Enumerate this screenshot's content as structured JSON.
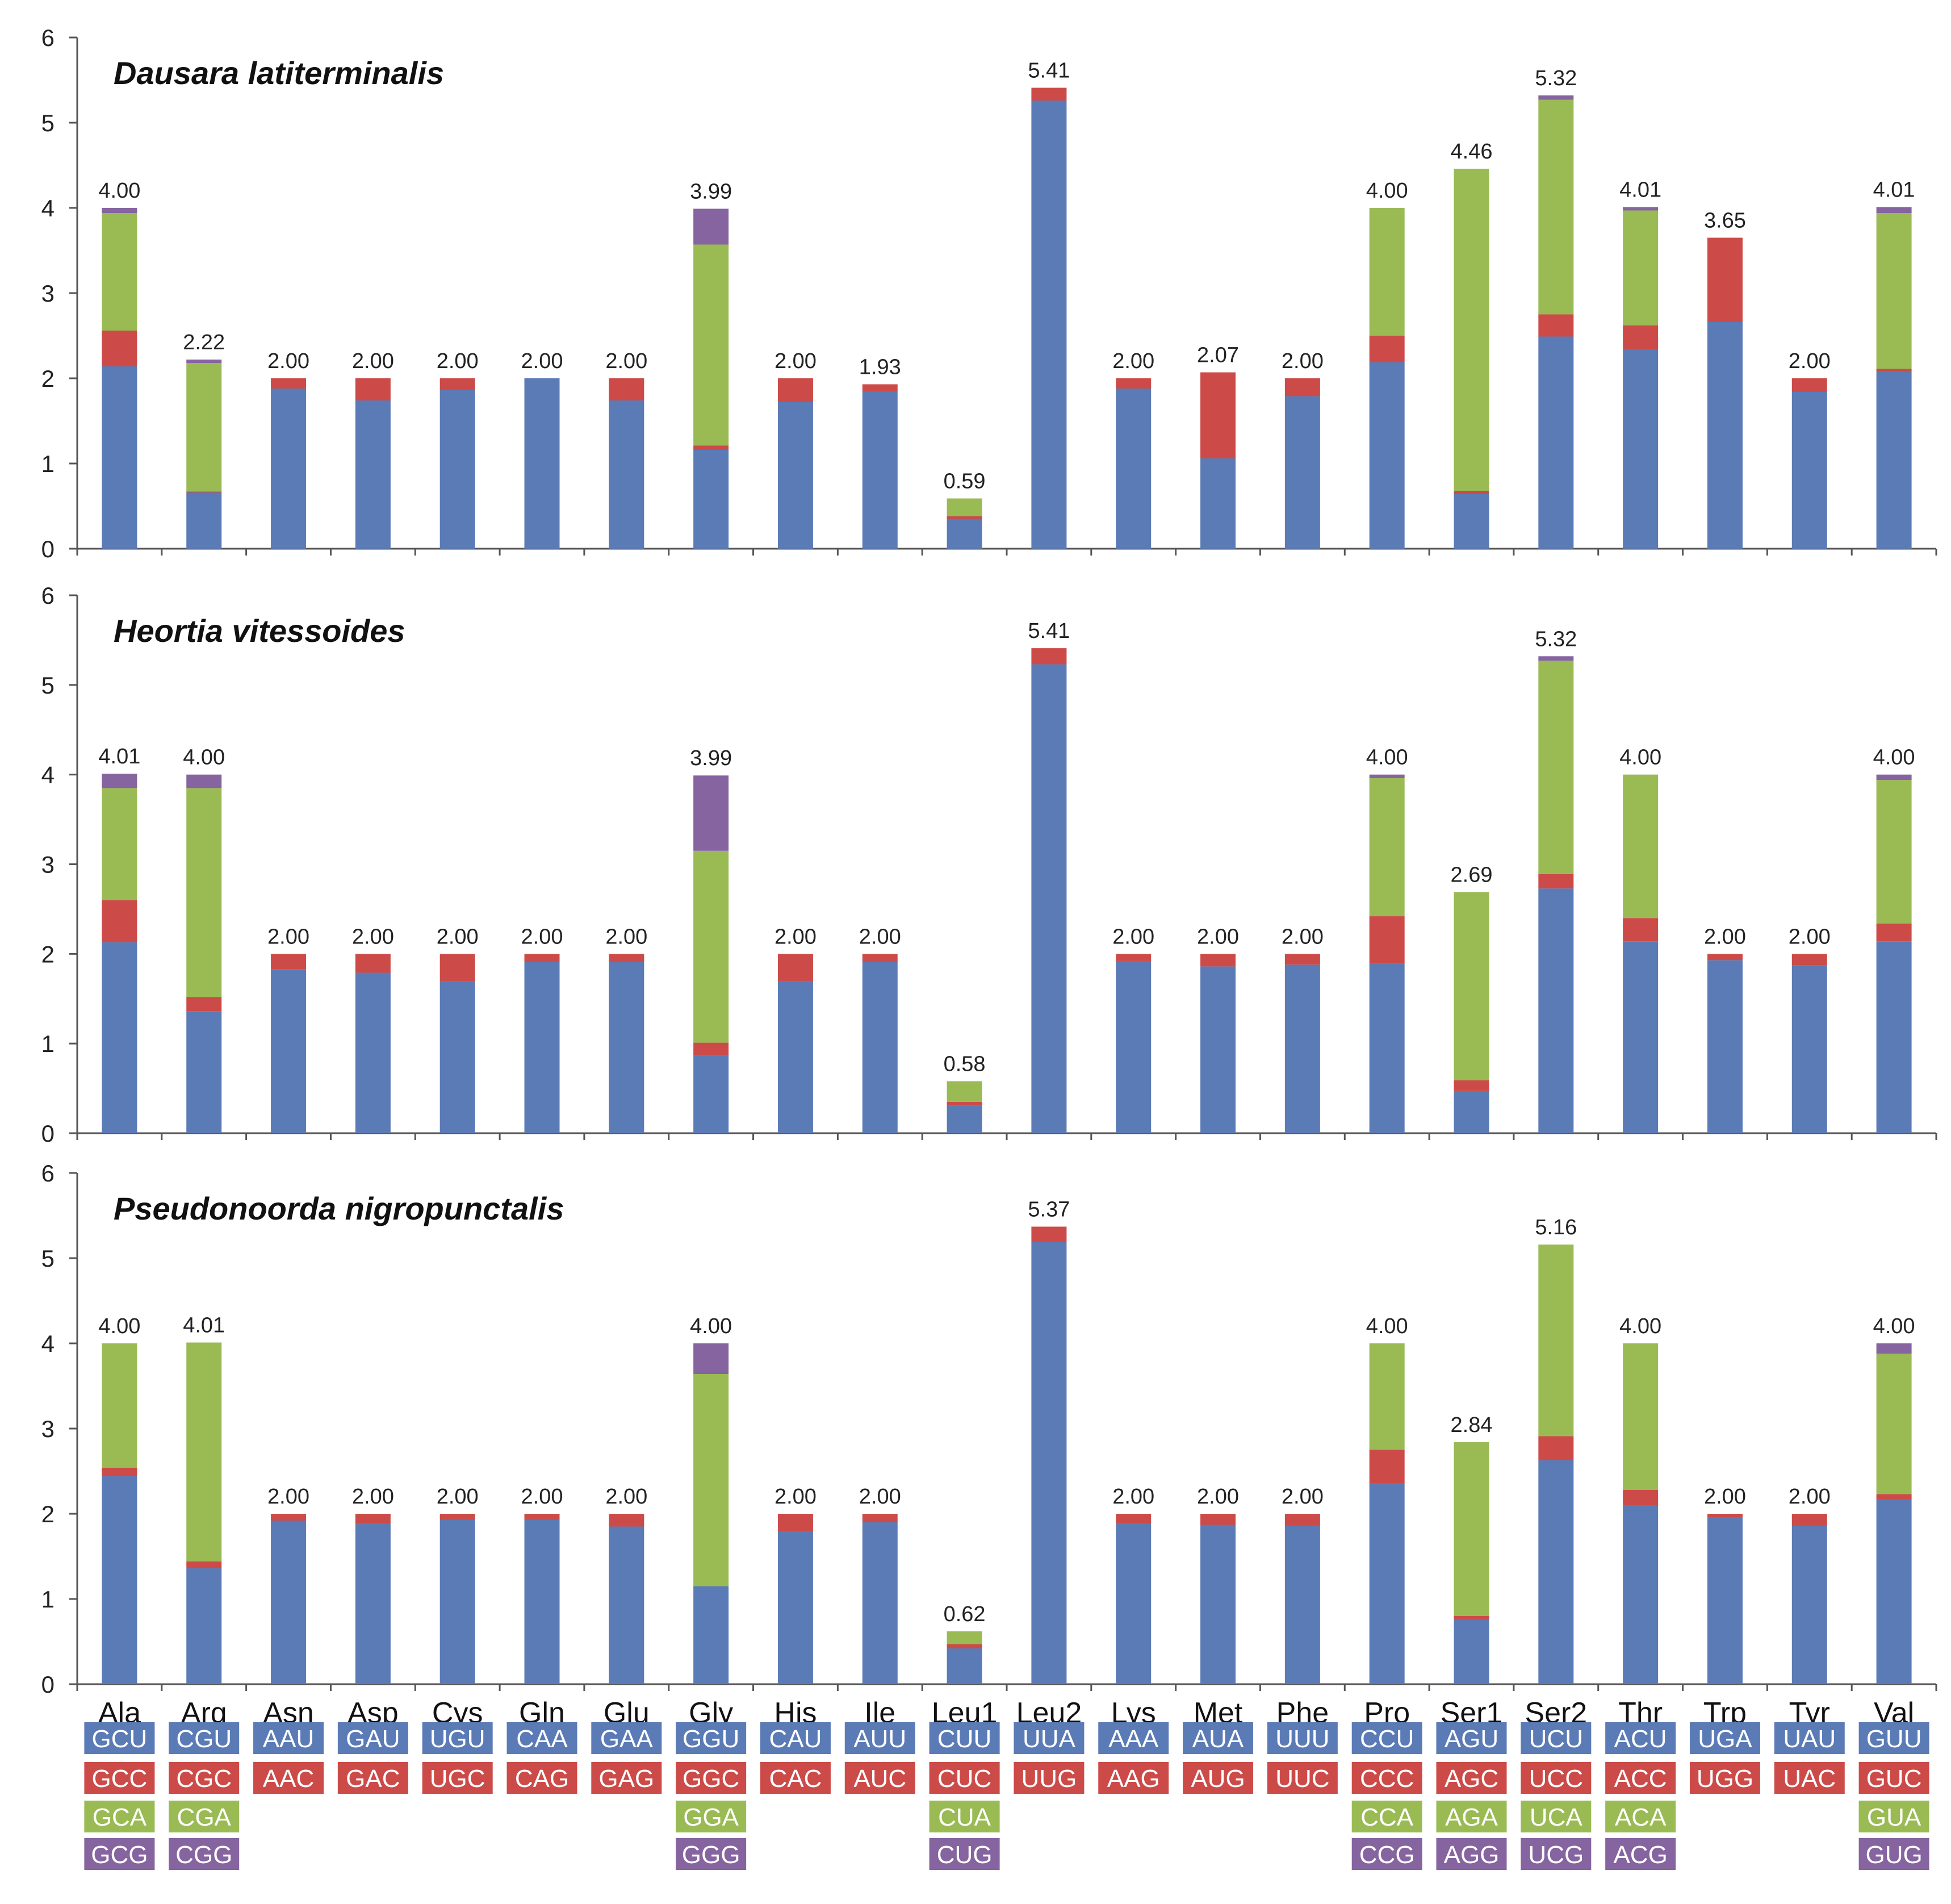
{
  "chart_data": {
    "type": "bar",
    "stacked": true,
    "categories": [
      "Ala",
      "Arg",
      "Asn",
      "Asp",
      "Cys",
      "Gln",
      "Glu",
      "Gly",
      "His",
      "Ile",
      "Leu1",
      "Leu2",
      "Lys",
      "Met",
      "Phe",
      "Pro",
      "Ser1",
      "Ser2",
      "Thr",
      "Trp",
      "Tyr",
      "Val"
    ],
    "ylim": [
      0,
      6
    ],
    "yticks": [
      "0",
      "1",
      "2",
      "3",
      "4",
      "5",
      "6"
    ],
    "colors": [
      "#5b7bb6",
      "#cc4b48",
      "#9aba54",
      "#8564a0"
    ],
    "panels": [
      {
        "title": "Dausara latiterminalis",
        "totals_labels": [
          "4.00",
          "2.22",
          "2.00",
          "2.00",
          "2.00",
          "2.00",
          "2.00",
          "3.99",
          "2.00",
          "1.93",
          "0.59",
          "5.41",
          "2.00",
          "2.07",
          "2.00",
          "4.00",
          "4.46",
          "5.32",
          "4.01",
          "3.65",
          "2.00",
          "4.01"
        ],
        "series": [
          {
            "name": "codon 1",
            "values": [
              2.14,
              0.66,
              1.88,
              1.74,
              1.86,
              2.0,
              1.74,
              1.16,
              1.72,
              1.85,
              0.35,
              5.26,
              1.88,
              1.06,
              1.79,
              2.19,
              0.64,
              2.49,
              2.34,
              2.66,
              1.84,
              2.08
            ]
          },
          {
            "name": "codon 2",
            "values": [
              0.42,
              0.01,
              0.12,
              0.26,
              0.14,
              0.0,
              0.26,
              0.05,
              0.28,
              0.08,
              0.03,
              0.15,
              0.12,
              1.01,
              0.21,
              0.31,
              0.04,
              0.26,
              0.28,
              0.99,
              0.16,
              0.03
            ]
          },
          {
            "name": "codon 3",
            "values": [
              1.38,
              1.51,
              0,
              0,
              0,
              0,
              0,
              2.36,
              0,
              0,
              0.21,
              0,
              0,
              0,
              0,
              1.5,
              3.78,
              2.52,
              1.35,
              0,
              0,
              1.83
            ]
          },
          {
            "name": "codon 4",
            "values": [
              0.06,
              0.04,
              0,
              0,
              0,
              0,
              0,
              0.42,
              0,
              0,
              0,
              0,
              0,
              0,
              0,
              0,
              0,
              0.05,
              0.04,
              0,
              0,
              0.07
            ]
          }
        ]
      },
      {
        "title": "Heortia vitessoides",
        "totals_labels": [
          "4.01",
          "4.00",
          "2.00",
          "2.00",
          "2.00",
          "2.00",
          "2.00",
          "3.99",
          "2.00",
          "2.00",
          "0.58",
          "5.41",
          "2.00",
          "2.00",
          "2.00",
          "4.00",
          "2.69",
          "5.32",
          "4.00",
          "2.00",
          "2.00",
          "4.00"
        ],
        "series": [
          {
            "name": "codon 1",
            "values": [
              2.13,
              1.36,
              1.83,
              1.79,
              1.69,
              1.91,
              1.91,
              0.87,
              1.69,
              1.91,
              0.31,
              5.23,
              1.92,
              1.86,
              1.88,
              1.9,
              0.47,
              2.73,
              2.14,
              1.93,
              1.87,
              2.14
            ]
          },
          {
            "name": "codon 2",
            "values": [
              0.47,
              0.16,
              0.17,
              0.21,
              0.31,
              0.09,
              0.09,
              0.14,
              0.31,
              0.09,
              0.04,
              0.18,
              0.08,
              0.14,
              0.12,
              0.52,
              0.12,
              0.16,
              0.26,
              0.07,
              0.13,
              0.2
            ]
          },
          {
            "name": "codon 3",
            "values": [
              1.25,
              2.33,
              0,
              0,
              0,
              0,
              0,
              2.14,
              0,
              0,
              0.23,
              0,
              0,
              0,
              0,
              1.54,
              2.1,
              2.38,
              1.6,
              0,
              0,
              1.6
            ]
          },
          {
            "name": "codon 4",
            "values": [
              0.16,
              0.15,
              0,
              0,
              0,
              0,
              0,
              0.84,
              0,
              0,
              0,
              0,
              0,
              0,
              0,
              0.04,
              0,
              0.05,
              0,
              0,
              0,
              0.06
            ]
          }
        ]
      },
      {
        "title": "Pseudonoorda nigropunctalis",
        "totals_labels": [
          "4.00",
          "4.01",
          "2.00",
          "2.00",
          "2.00",
          "2.00",
          "2.00",
          "4.00",
          "2.00",
          "2.00",
          "0.62",
          "5.37",
          "2.00",
          "2.00",
          "2.00",
          "4.00",
          "2.84",
          "5.16",
          "4.00",
          "2.00",
          "2.00",
          "4.00"
        ],
        "series": [
          {
            "name": "codon 1",
            "values": [
              2.44,
              1.36,
              1.92,
              1.89,
              1.93,
              1.93,
              1.85,
              1.15,
              1.8,
              1.9,
              0.42,
              5.19,
              1.89,
              1.87,
              1.86,
              2.36,
              0.76,
              2.63,
              2.1,
              1.96,
              1.86,
              2.17
            ]
          },
          {
            "name": "codon 2",
            "values": [
              0.1,
              0.08,
              0.08,
              0.11,
              0.07,
              0.07,
              0.15,
              0,
              0.2,
              0.1,
              0.05,
              0.18,
              0.11,
              0.13,
              0.14,
              0.39,
              0.04,
              0.28,
              0.18,
              0.04,
              0.14,
              0.06
            ]
          },
          {
            "name": "codon 3",
            "values": [
              1.46,
              2.57,
              0,
              0,
              0,
              0,
              0,
              2.49,
              0,
              0,
              0.15,
              0,
              0,
              0,
              0,
              1.25,
              2.04,
              2.25,
              1.72,
              0,
              0,
              1.65
            ]
          },
          {
            "name": "codon 4",
            "values": [
              0,
              0,
              0,
              0,
              0,
              0,
              0,
              0.36,
              0,
              0,
              0,
              0,
              0,
              0,
              0,
              0,
              0,
              0,
              0,
              0,
              0,
              0.12
            ]
          }
        ]
      }
    ],
    "codons": [
      [
        "GCU",
        "GCC",
        "GCA",
        "GCG"
      ],
      [
        "CGU",
        "CGC",
        "CGA",
        "CGG"
      ],
      [
        "AAU",
        "AAC"
      ],
      [
        "GAU",
        "GAC"
      ],
      [
        "UGU",
        "UGC"
      ],
      [
        "CAA",
        "CAG"
      ],
      [
        "GAA",
        "GAG"
      ],
      [
        "GGU",
        "GGC",
        "GGA",
        "GGG"
      ],
      [
        "CAU",
        "CAC"
      ],
      [
        "AUU",
        "AUC"
      ],
      [
        "CUU",
        "CUC",
        "CUA",
        "CUG"
      ],
      [
        "UUA",
        "UUG"
      ],
      [
        "AAA",
        "AAG"
      ],
      [
        "AUA",
        "AUG"
      ],
      [
        "UUU",
        "UUC"
      ],
      [
        "CCU",
        "CCC",
        "CCA",
        "CCG"
      ],
      [
        "AGU",
        "AGC",
        "AGA",
        "AGG"
      ],
      [
        "UCU",
        "UCC",
        "UCA",
        "UCG"
      ],
      [
        "ACU",
        "ACC",
        "ACA",
        "ACG"
      ],
      [
        "UGA",
        "UGG"
      ],
      [
        "UAU",
        "UAC"
      ],
      [
        "GUU",
        "GUC",
        "GUA",
        "GUG"
      ]
    ]
  }
}
